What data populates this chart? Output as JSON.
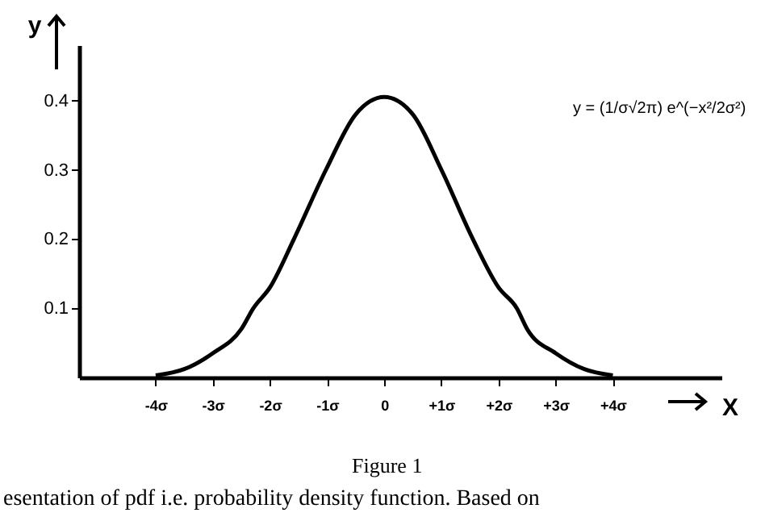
{
  "chart_data": {
    "type": "line",
    "xlabel": "X",
    "ylabel": "y",
    "x": [
      -4,
      -3.5,
      -3,
      -2.5,
      -2.29,
      -2,
      -1.58,
      -1.02,
      -0.5,
      0,
      0.5,
      1,
      1.55,
      2,
      2.32,
      2.5,
      3,
      3.5,
      4
    ],
    "series": [
      {
        "color": "#000000",
        "values": [
          0.003,
          0.012,
          0.035,
          0.07,
          0.1,
          0.13,
          0.2,
          0.3,
          0.38,
          0.405,
          0.38,
          0.3,
          0.2,
          0.13,
          0.1,
          0.07,
          0.035,
          0.012,
          0.003
        ]
      }
    ],
    "xlim": [
      -5.34,
      5.9
    ],
    "ylim": [
      0,
      0.48
    ],
    "xticks": [
      {
        "value": -4,
        "label": "-4σ"
      },
      {
        "value": -3,
        "label": "-3σ"
      },
      {
        "value": -2,
        "label": "-2σ"
      },
      {
        "value": -1,
        "label": "-1σ"
      },
      0,
      {
        "value": 1,
        "label": "+1σ"
      },
      {
        "value": 2,
        "label": "+2σ"
      },
      {
        "value": 3,
        "label": "+3σ"
      },
      {
        "value": 4,
        "label": "+4σ"
      }
    ],
    "yticks": [
      0.1,
      0.2,
      0.3,
      0.4
    ],
    "grid": false,
    "legend": false,
    "marker": "none",
    "line_style": "solid",
    "annotations": [
      "y = (1/σ√2π) e^(−x²/2σ²)",
      "Figure 1",
      "esentation of pdf i.e. probability density function. Based on"
    ]
  }
}
